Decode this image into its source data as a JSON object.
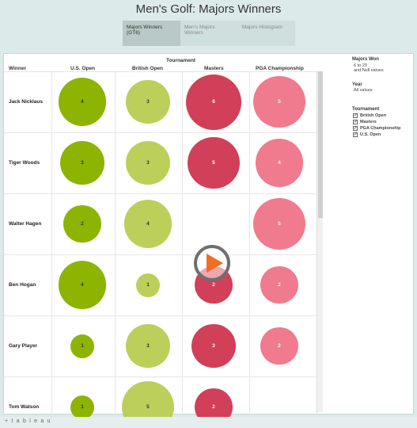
{
  "title": "Men's Golf: Majors Winners",
  "tabs": [
    {
      "label": "Majors Winners (GT6)",
      "active": true
    },
    {
      "label": "Men's Majors Winners",
      "active": false
    },
    {
      "label": "Majors Histogram",
      "active": false
    }
  ],
  "table": {
    "group_header": "Tournament",
    "row_header": "Winner",
    "columns": [
      "U.S. Open",
      "British Open",
      "Masters",
      "PGA Championship"
    ],
    "colors": {
      "U.S. Open": "#8cb400",
      "British Open": "#bccf5a",
      "Masters": "#d13f58",
      "PGA Championship": "#f07a8e"
    },
    "rows": [
      {
        "winner": "Jack Nicklaus",
        "values": [
          4,
          3,
          6,
          5
        ]
      },
      {
        "winner": "Tiger Woods",
        "values": [
          3,
          3,
          5,
          4
        ]
      },
      {
        "winner": "Walter Hagen",
        "values": [
          2,
          4,
          null,
          5
        ]
      },
      {
        "winner": "Ben Hogan",
        "values": [
          4,
          1,
          2,
          2
        ]
      },
      {
        "winner": "Gary Player",
        "values": [
          1,
          3,
          3,
          2
        ]
      },
      {
        "winner": "Tom Watson",
        "values": [
          1,
          5,
          2,
          null
        ]
      }
    ]
  },
  "legend": {
    "majors_won": {
      "title": "Majors Won",
      "line1": "6 to 20",
      "line2": "and Null values"
    },
    "year": {
      "title": "Year",
      "line1": "All values"
    },
    "tournament": {
      "title": "Tournament",
      "items": [
        "British Open",
        "Masters",
        "PGA Championship",
        "U.S. Open"
      ],
      "checked_mark": "✓"
    }
  },
  "footer": {
    "logo": "+ t a b l e a u"
  }
}
